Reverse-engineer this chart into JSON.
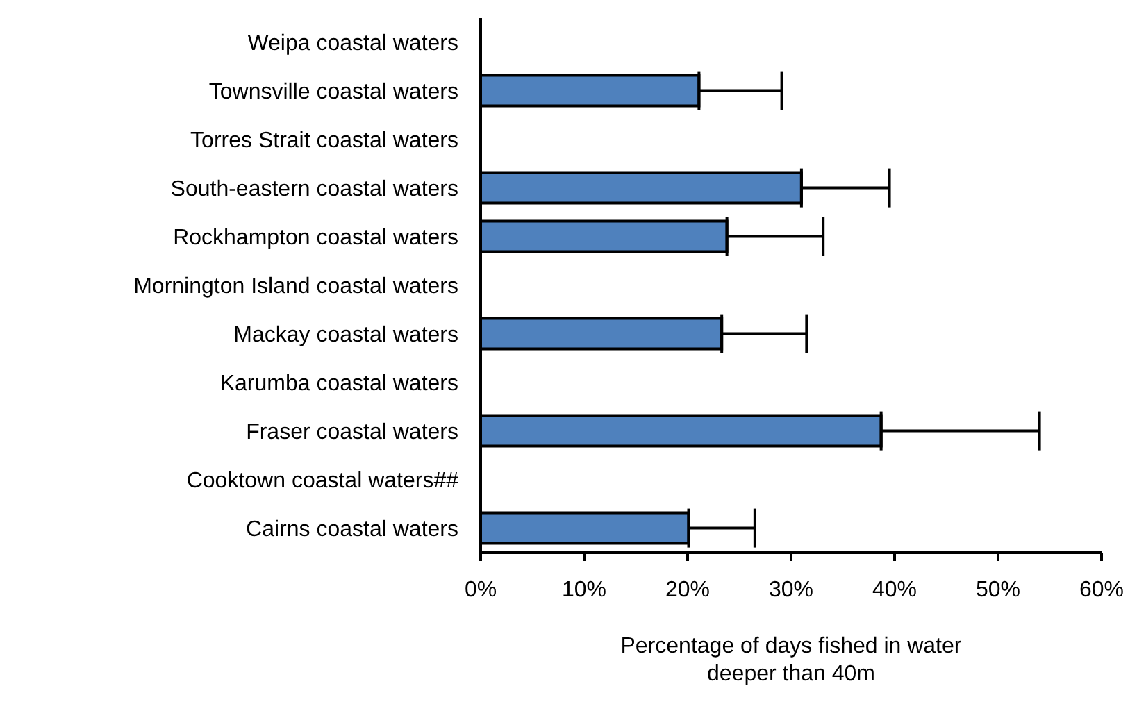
{
  "chart_data": {
    "type": "bar",
    "orientation": "horizontal",
    "xlabel": "Percentage of days fished in water deeper than 40m",
    "categories": [
      "Weipa coastal waters",
      "Townsville coastal waters",
      "Torres Strait coastal waters",
      "South-eastern coastal waters",
      "Rockhampton coastal waters",
      "Mornington Island coastal waters",
      "Mackay coastal waters",
      "Karumba coastal waters",
      "Fraser coastal waters",
      "Cooktown coastal waters##",
      "Cairns coastal waters"
    ],
    "values": [
      null,
      21.1,
      null,
      31.0,
      23.8,
      null,
      23.3,
      null,
      38.7,
      null,
      20.1
    ],
    "errors": [
      null,
      [
        21.1,
        29.1
      ],
      null,
      [
        31.0,
        39.5
      ],
      [
        23.8,
        33.1
      ],
      null,
      [
        23.3,
        31.5
      ],
      null,
      [
        38.7,
        54.0
      ],
      null,
      [
        20.1,
        26.5
      ]
    ],
    "color": "#4f81bd",
    "xlim": [
      0,
      60
    ],
    "xticks": [
      {
        "value": 0,
        "label": "0%"
      },
      {
        "value": 10,
        "label": "10%"
      },
      {
        "value": 20,
        "label": "20%"
      },
      {
        "value": 30,
        "label": "30%"
      },
      {
        "value": 40,
        "label": "40%"
      },
      {
        "value": 50,
        "label": "50%"
      },
      {
        "value": 60,
        "label": "60%"
      }
    ],
    "grid": false,
    "legend": false
  }
}
